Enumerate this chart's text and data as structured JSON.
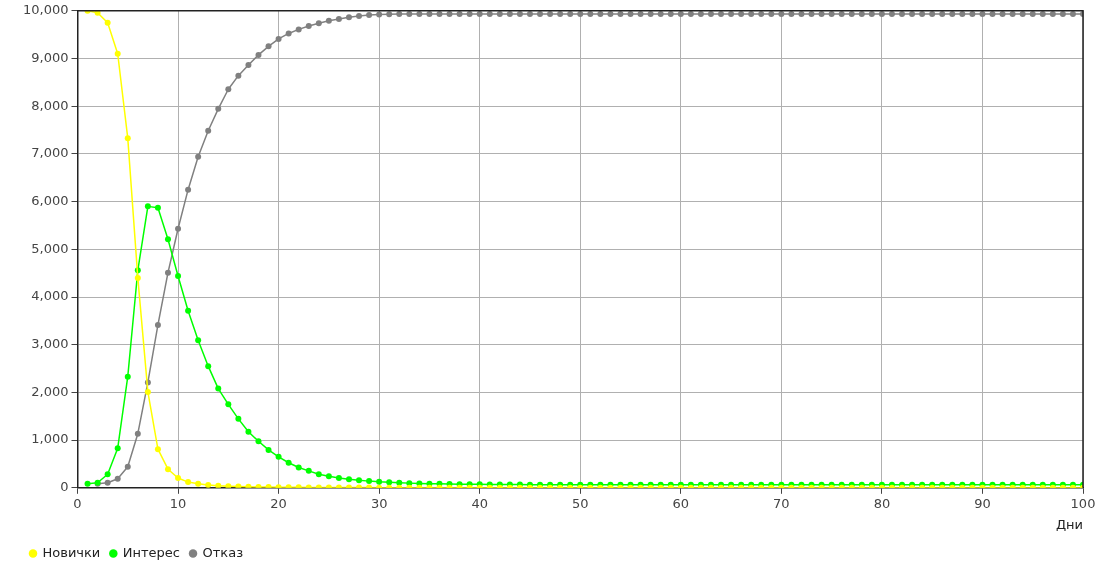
{
  "chart_data": {
    "type": "line",
    "xlabel": "Дни",
    "x": [
      1,
      2,
      3,
      4,
      5,
      6,
      7,
      8,
      9,
      10,
      11,
      12,
      13,
      14,
      15,
      16,
      17,
      18,
      19,
      20,
      21,
      22,
      23,
      24,
      25,
      26,
      27,
      28,
      29,
      30,
      31,
      32,
      33,
      34,
      35,
      36,
      37,
      38,
      39,
      40,
      41,
      42,
      43,
      44,
      45,
      46,
      47,
      48,
      49,
      50,
      51,
      52,
      53,
      54,
      55,
      56,
      57,
      58,
      59,
      60,
      61,
      62,
      63,
      64,
      65,
      66,
      67,
      68,
      69,
      70,
      71,
      72,
      73,
      74,
      75,
      76,
      77,
      78,
      79,
      80,
      81,
      82,
      83,
      84,
      85,
      86,
      87,
      88,
      89,
      90,
      91,
      92,
      93,
      94,
      95,
      96,
      97,
      98,
      99,
      100
    ],
    "series": [
      {
        "name": "Новички",
        "color": "#ffff00",
        "values": [
          10000,
          9960,
          9750,
          9100,
          7330,
          4400,
          2010,
          810,
          390,
          205,
          120,
          85,
          60,
          45,
          35,
          28,
          22,
          18,
          15,
          12,
          10,
          9,
          8,
          7,
          6,
          5,
          5,
          4,
          4,
          3,
          0,
          0,
          0,
          0,
          0,
          0,
          0,
          0,
          0,
          0,
          0,
          0,
          0,
          0,
          0,
          0,
          0,
          0,
          0,
          0,
          0,
          0,
          0,
          0,
          0,
          0,
          0,
          0,
          0,
          0,
          0,
          0,
          0,
          0,
          0,
          0,
          0,
          0,
          0,
          0,
          0,
          0,
          0,
          0,
          0,
          0,
          0,
          0,
          0,
          0,
          0,
          0,
          0,
          0,
          0,
          0,
          0,
          0,
          0,
          0,
          0,
          0,
          0,
          0,
          0,
          0,
          0,
          0,
          0,
          0
        ]
      },
      {
        "name": "Интерес",
        "color": "#00ff00",
        "values": [
          85,
          105,
          285,
          830,
          2330,
          4560,
          5900,
          5870,
          5210,
          4440,
          3710,
          3095,
          2550,
          2080,
          1750,
          1445,
          1175,
          975,
          795,
          650,
          525,
          425,
          355,
          285,
          240,
          205,
          180,
          160,
          140,
          125,
          115,
          105,
          98,
          92,
          87,
          83,
          80,
          77,
          75,
          73,
          71,
          70,
          69,
          68,
          65,
          65,
          65,
          65,
          65,
          65,
          65,
          65,
          65,
          65,
          65,
          65,
          65,
          65,
          65,
          65,
          65,
          65,
          65,
          65,
          65,
          65,
          65,
          65,
          65,
          65,
          65,
          65,
          65,
          65,
          65,
          65,
          65,
          65,
          65,
          65,
          65,
          65,
          65,
          65,
          65,
          65,
          65,
          65,
          65,
          65,
          65,
          65,
          65,
          65,
          65,
          65,
          65,
          65,
          65,
          65
        ]
      },
      {
        "name": "Отказ",
        "color": "#808080",
        "values": [
          null,
          85,
          105,
          190,
          440,
          1135,
          2210,
          3415,
          4510,
          5430,
          6250,
          6940,
          7485,
          7945,
          8355,
          8640,
          8865,
          9075,
          9255,
          9410,
          9525,
          9610,
          9680,
          9740,
          9790,
          9830,
          9865,
          9890,
          9910,
          9925,
          9930,
          9935,
          9935,
          9935,
          9935,
          9935,
          9935,
          9935,
          9935,
          9935,
          9935,
          9935,
          9935,
          9935,
          9935,
          9935,
          9935,
          9935,
          9935,
          9935,
          9935,
          9935,
          9935,
          9935,
          9935,
          9935,
          9935,
          9935,
          9935,
          9935,
          9935,
          9935,
          9935,
          9935,
          9935,
          9935,
          9935,
          9935,
          9935,
          9935,
          9935,
          9935,
          9935,
          9935,
          9935,
          9935,
          9935,
          9935,
          9935,
          9935,
          9935,
          9935,
          9935,
          9935,
          9935,
          9935,
          9935,
          9935,
          9935,
          9935,
          9935,
          9935,
          9935,
          9935,
          9935,
          9935,
          9935,
          9935,
          9935,
          9935
        ]
      }
    ],
    "xlim": [
      0,
      100
    ],
    "xticks": [
      0,
      10,
      20,
      30,
      40,
      50,
      60,
      70,
      80,
      90,
      100
    ],
    "ylim": [
      0,
      10000
    ],
    "yticks": [
      0,
      {
        "value": 1000,
        "label": "1,000"
      },
      {
        "value": 2000,
        "label": "2,000"
      },
      {
        "value": 3000,
        "label": "3,000"
      },
      {
        "value": 4000,
        "label": "4,000"
      },
      {
        "value": 5000,
        "label": "5,000"
      },
      {
        "value": 6000,
        "label": "6,000"
      },
      {
        "value": 7000,
        "label": "7,000"
      },
      {
        "value": 8000,
        "label": "8,000"
      },
      {
        "value": 9000,
        "label": "9,000"
      },
      {
        "value": 10000,
        "label": "10,000"
      }
    ],
    "grid": true,
    "legend": "bottom left",
    "marker": "circle",
    "line_style": "solid"
  }
}
